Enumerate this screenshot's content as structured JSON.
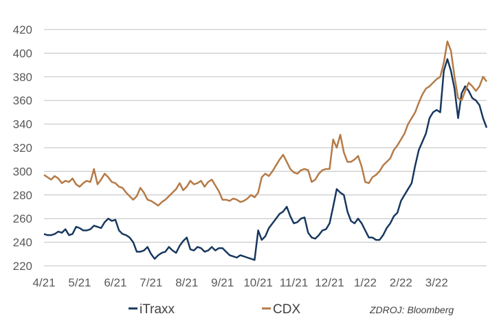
{
  "chart_data": {
    "type": "line",
    "title": "",
    "xlabel": "",
    "ylabel": "",
    "ylim": [
      220,
      420
    ],
    "yticks": [
      220,
      240,
      260,
      280,
      300,
      320,
      340,
      360,
      380,
      400,
      420
    ],
    "grid": true,
    "legend": "bottom-left",
    "source": "ZDROJ: Bloomberg",
    "x_tick_labels": [
      "4/21",
      "5/21",
      "6/21",
      "7/21",
      "8/21",
      "9/21",
      "10/21",
      "11/21",
      "12/21",
      "1/22",
      "2/22",
      "3/22"
    ],
    "x_domain": [
      0,
      12.4
    ],
    "series": [
      {
        "name": "iTraxx",
        "color": "#17375e",
        "x": [
          0.0,
          0.1,
          0.2,
          0.3,
          0.4,
          0.5,
          0.6,
          0.7,
          0.8,
          0.9,
          1.0,
          1.1,
          1.2,
          1.3,
          1.4,
          1.5,
          1.6,
          1.7,
          1.8,
          1.9,
          2.0,
          2.1,
          2.2,
          2.3,
          2.4,
          2.5,
          2.6,
          2.7,
          2.8,
          2.9,
          3.0,
          3.1,
          3.2,
          3.3,
          3.4,
          3.5,
          3.6,
          3.7,
          3.8,
          3.9,
          4.0,
          4.1,
          4.2,
          4.3,
          4.4,
          4.5,
          4.6,
          4.7,
          4.8,
          4.9,
          5.0,
          5.1,
          5.2,
          5.3,
          5.4,
          5.5,
          5.6,
          5.7,
          5.8,
          5.9,
          6.0,
          6.1,
          6.2,
          6.3,
          6.4,
          6.5,
          6.6,
          6.7,
          6.8,
          6.9,
          7.0,
          7.1,
          7.2,
          7.3,
          7.4,
          7.5,
          7.6,
          7.7,
          7.8,
          7.9,
          8.0,
          8.1,
          8.2,
          8.3,
          8.4,
          8.5,
          8.6,
          8.7,
          8.8,
          8.9,
          9.0,
          9.1,
          9.2,
          9.3,
          9.4,
          9.5,
          9.6,
          9.7,
          9.8,
          9.9,
          10.0,
          10.1,
          10.2,
          10.3,
          10.4,
          10.5,
          10.6,
          10.7,
          10.8,
          10.9,
          11.0,
          11.1,
          11.2,
          11.3,
          11.4,
          11.5,
          11.6,
          11.7,
          11.8,
          11.9,
          12.0,
          12.1,
          12.2,
          12.3,
          12.4
        ],
        "values": [
          247,
          246,
          246,
          247,
          249,
          248,
          251,
          246,
          247,
          253,
          252,
          250,
          250,
          251,
          254,
          253,
          252,
          257,
          260,
          258,
          259,
          250,
          247,
          246,
          244,
          240,
          232,
          232,
          233,
          236,
          230,
          226,
          229,
          231,
          232,
          236,
          233,
          231,
          237,
          241,
          244,
          234,
          233,
          236,
          235,
          232,
          233,
          236,
          233,
          235,
          235,
          232,
          229,
          228,
          227,
          229,
          228,
          227,
          226,
          225,
          250,
          242,
          245,
          252,
          256,
          260,
          264,
          266,
          270,
          262,
          256,
          257,
          260,
          261,
          248,
          244,
          243,
          246,
          250,
          251,
          256,
          270,
          285,
          282,
          280,
          266,
          258,
          256,
          260,
          256,
          250,
          244,
          244,
          242,
          242,
          246,
          252,
          256,
          262,
          265,
          275,
          280,
          285,
          290,
          305,
          318,
          325,
          332,
          345,
          350,
          352,
          350,
          385,
          395,
          385,
          370,
          345,
          366,
          372,
          368,
          362,
          360,
          356,
          345,
          337
        ]
      },
      {
        "name": "CDX",
        "color": "#b57a46",
        "x": [
          0.0,
          0.1,
          0.2,
          0.3,
          0.4,
          0.5,
          0.6,
          0.7,
          0.8,
          0.9,
          1.0,
          1.1,
          1.2,
          1.3,
          1.4,
          1.5,
          1.6,
          1.7,
          1.8,
          1.9,
          2.0,
          2.1,
          2.2,
          2.3,
          2.4,
          2.5,
          2.6,
          2.7,
          2.8,
          2.9,
          3.0,
          3.1,
          3.2,
          3.3,
          3.4,
          3.5,
          3.6,
          3.7,
          3.8,
          3.9,
          4.0,
          4.1,
          4.2,
          4.3,
          4.4,
          4.5,
          4.6,
          4.7,
          4.8,
          4.9,
          5.0,
          5.1,
          5.2,
          5.3,
          5.4,
          5.5,
          5.6,
          5.7,
          5.8,
          5.9,
          6.0,
          6.1,
          6.2,
          6.3,
          6.4,
          6.5,
          6.6,
          6.7,
          6.8,
          6.9,
          7.0,
          7.1,
          7.2,
          7.3,
          7.4,
          7.5,
          7.6,
          7.7,
          7.8,
          7.9,
          8.0,
          8.1,
          8.2,
          8.3,
          8.4,
          8.5,
          8.6,
          8.7,
          8.8,
          8.9,
          9.0,
          9.1,
          9.2,
          9.3,
          9.4,
          9.5,
          9.6,
          9.7,
          9.8,
          9.9,
          10.0,
          10.1,
          10.2,
          10.3,
          10.4,
          10.5,
          10.6,
          10.7,
          10.8,
          10.9,
          11.0,
          11.1,
          11.2,
          11.3,
          11.4,
          11.5,
          11.6,
          11.7,
          11.8,
          11.9,
          12.0,
          12.1,
          12.2,
          12.3,
          12.4
        ],
        "values": [
          297,
          295,
          293,
          296,
          294,
          290,
          292,
          291,
          294,
          289,
          287,
          290,
          292,
          291,
          302,
          289,
          293,
          298,
          295,
          291,
          290,
          287,
          286,
          282,
          279,
          276,
          279,
          286,
          282,
          276,
          275,
          273,
          271,
          274,
          276,
          279,
          282,
          285,
          290,
          284,
          287,
          292,
          289,
          290,
          292,
          287,
          291,
          293,
          288,
          283,
          276,
          276,
          275,
          277,
          276,
          274,
          275,
          277,
          280,
          278,
          282,
          295,
          298,
          296,
          300,
          305,
          310,
          314,
          308,
          302,
          299,
          298,
          301,
          302,
          301,
          291,
          293,
          298,
          301,
          302,
          302,
          327,
          320,
          331,
          316,
          308,
          308,
          310,
          313,
          304,
          291,
          290,
          295,
          297,
          300,
          305,
          308,
          311,
          318,
          322,
          327,
          332,
          340,
          345,
          350,
          358,
          365,
          370,
          372,
          375,
          378,
          380,
          392,
          410,
          402,
          380,
          362,
          360,
          368,
          375,
          372,
          368,
          372,
          380,
          376
        ]
      }
    ]
  }
}
